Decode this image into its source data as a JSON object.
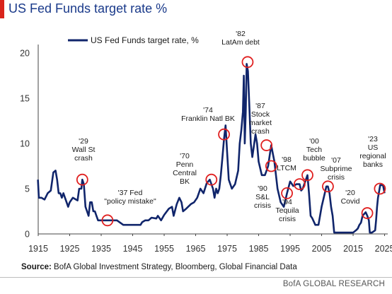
{
  "title": "US Fed Funds target rate %",
  "source": {
    "label": "Source:",
    "text": "BofA Global Investment Strategy, Bloomberg, Global Financial Data"
  },
  "footer": {
    "brand": "BofA GLOBAL RESEARCH"
  },
  "colors": {
    "title": "#1a3a8a",
    "accent": "#d9241b",
    "line": "#10256b",
    "text": "#1a1a1a",
    "gridline": "#d9d9d9"
  },
  "chart_data": {
    "type": "line",
    "title": "US Fed Funds target rate %",
    "xlabel": "",
    "ylabel": "",
    "xlim": [
      1915,
      2026
    ],
    "ylim": [
      0,
      20
    ],
    "x_ticks": [
      1915,
      1925,
      1935,
      1945,
      1955,
      1965,
      1975,
      1985,
      1995,
      2005,
      2015,
      2025
    ],
    "y_ticks": [
      0,
      5,
      10,
      15,
      20
    ],
    "grid": false,
    "legend": {
      "position": "top-left",
      "entries": [
        "US Fed Funds target rate, %"
      ]
    },
    "series": [
      {
        "name": "US Fed Funds target rate, %",
        "x": [
          1914.9,
          1915.2,
          1916.0,
          1917.0,
          1918.0,
          1919.0,
          1919.8,
          1920.5,
          1921.0,
          1921.5,
          1922.0,
          1922.5,
          1923.0,
          1924.0,
          1924.5,
          1925.0,
          1926.0,
          1927.0,
          1927.5,
          1928.0,
          1928.7,
          1929.0,
          1929.5,
          1930.0,
          1930.5,
          1931.0,
          1931.5,
          1932.0,
          1932.5,
          1933.0,
          1933.5,
          1934.0,
          1936.0,
          1937.0,
          1940.0,
          1942.0,
          1946.0,
          1947.5,
          1948.0,
          1949.0,
          1950.0,
          1951.0,
          1952.5,
          1953.0,
          1954.0,
          1955.0,
          1956.5,
          1957.5,
          1958.0,
          1959.0,
          1959.8,
          1960.5,
          1961.0,
          1962.0,
          1963.5,
          1964.5,
          1965.5,
          1966.5,
          1967.5,
          1968.5,
          1969.5,
          1970.5,
          1971.0,
          1971.5,
          1972.0,
          1972.5,
          1973.0,
          1973.5,
          1974.0,
          1974.5,
          1975.0,
          1975.5,
          1976.5,
          1977.5,
          1978.5,
          1979.0,
          1979.5,
          1980.0,
          1980.3,
          1980.6,
          1980.9,
          1981.2,
          1981.6,
          1982.0,
          1982.5,
          1983.0,
          1984.0,
          1984.5,
          1985.0,
          1986.0,
          1987.0,
          1987.5,
          1988.0,
          1989.0,
          1990.0,
          1991.0,
          1992.0,
          1993.0,
          1994.0,
          1995.0,
          1996.0,
          1997.0,
          1998.0,
          1998.5,
          1999.0,
          2000.0,
          2000.5,
          2001.0,
          2001.5,
          2002.0,
          2003.0,
          2004.0,
          2004.5,
          2005.0,
          2006.0,
          2006.5,
          2007.0,
          2007.5,
          2008.0,
          2008.5,
          2009.0,
          2015.0,
          2015.9,
          2016.5,
          2017.0,
          2017.5,
          2018.0,
          2019.0,
          2019.5,
          2020.0,
          2020.3,
          2021.0,
          2022.0,
          2022.3,
          2022.6,
          2022.9,
          2023.3,
          2023.6,
          2024.5,
          2025.0
        ],
        "values": [
          6.0,
          4.0,
          4.0,
          3.8,
          4.5,
          4.8,
          6.8,
          7.0,
          6.0,
          4.5,
          4.5,
          4.0,
          4.5,
          3.5,
          3.0,
          3.5,
          4.0,
          3.8,
          3.7,
          5.0,
          5.0,
          6.0,
          5.5,
          3.0,
          2.5,
          2.0,
          3.5,
          3.5,
          2.5,
          2.5,
          2.0,
          1.5,
          1.5,
          1.5,
          1.5,
          1.0,
          1.0,
          1.0,
          1.3,
          1.5,
          1.5,
          1.8,
          1.7,
          2.0,
          1.5,
          2.1,
          2.8,
          3.0,
          2.0,
          3.3,
          4.0,
          3.5,
          2.5,
          2.8,
          3.3,
          3.5,
          4.0,
          5.0,
          4.5,
          5.6,
          6.0,
          5.0,
          4.0,
          5.0,
          4.5,
          5.0,
          6.5,
          8.5,
          10.5,
          12.0,
          9.0,
          6.0,
          5.0,
          5.5,
          7.0,
          10.0,
          11.5,
          13.5,
          17.5,
          10.0,
          13.5,
          18.8,
          18.0,
          14.5,
          10.0,
          8.5,
          11.0,
          10.0,
          8.0,
          6.5,
          6.5,
          7.0,
          7.5,
          9.8,
          8.0,
          5.0,
          3.5,
          3.0,
          4.5,
          5.8,
          5.3,
          5.5,
          5.5,
          4.8,
          5.0,
          6.0,
          6.5,
          4.5,
          2.0,
          1.75,
          1.0,
          1.0,
          2.0,
          3.0,
          4.5,
          5.25,
          5.25,
          4.5,
          3.0,
          2.0,
          0.15,
          0.15,
          0.4,
          0.6,
          1.0,
          1.25,
          2.0,
          2.4,
          2.0,
          1.5,
          0.15,
          0.15,
          0.4,
          1.5,
          3.0,
          4.0,
          4.8,
          5.4,
          5.4,
          4.5
        ]
      }
    ],
    "annotations": [
      {
        "label": "'29\nWall St\ncrash",
        "x": 1929.0,
        "y": 6.0
      },
      {
        "label": "'37 Fed\n\"policy mistake\"",
        "x": 1937.0,
        "y": 1.5
      },
      {
        "label": "'70\nPenn\nCentral\nBK",
        "x": 1970.0,
        "y": 6.0
      },
      {
        "label": "'74\nFranklin Natl BK",
        "x": 1974.0,
        "y": 11.0
      },
      {
        "label": "'82\nLatAm debt",
        "x": 1981.5,
        "y": 19.0
      },
      {
        "label": "'87\nStock\nmarket\ncrash",
        "x": 1987.5,
        "y": 9.8
      },
      {
        "label": "'90\nS&L\ncrisis",
        "x": 1989.0,
        "y": 7.5
      },
      {
        "label": "'94\nTequila\ncrisis",
        "x": 1994.0,
        "y": 4.5
      },
      {
        "label": "'98\nLTCM",
        "x": 1998.0,
        "y": 5.5
      },
      {
        "label": "'00\nTech\nbubble",
        "x": 2000.5,
        "y": 6.5
      },
      {
        "label": "'07\nSubprime\ncrisis",
        "x": 2007.0,
        "y": 5.25
      },
      {
        "label": "'20\nCovid",
        "x": 2019.5,
        "y": 2.3
      },
      {
        "label": "'23\nUS\nregional\nbanks",
        "x": 2023.5,
        "y": 5.0
      }
    ]
  }
}
